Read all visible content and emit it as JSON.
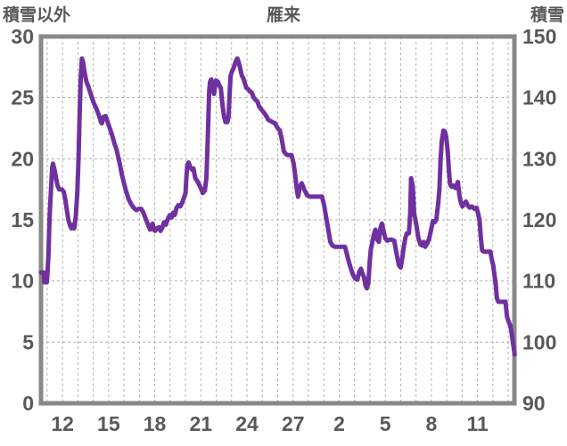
{
  "chart_data": {
    "type": "line",
    "title": "雁来",
    "grid": true,
    "legend_position": "none",
    "left_axis": {
      "label": "積雪以外",
      "min": 0,
      "max": 30,
      "ticks": [
        30,
        25,
        20,
        15,
        10,
        5,
        0
      ]
    },
    "right_axis": {
      "label": "積雪",
      "min": 90,
      "max": 150,
      "ticks": [
        150,
        140,
        130,
        120,
        110,
        100,
        90
      ]
    },
    "x_axis": {
      "min_day": 10.6,
      "max_day": 41.4,
      "grid_day_start": 11,
      "grid_day_end": 41,
      "tick_days": [
        12,
        15,
        18,
        21,
        24,
        27,
        30,
        33,
        36,
        39
      ],
      "tick_labels": [
        "12",
        "15",
        "18",
        "21",
        "24",
        "27",
        "2",
        "5",
        "8",
        "11"
      ]
    },
    "series": [
      {
        "name": "積雪",
        "color": "#7030A0",
        "points": [
          [
            10.6,
            10.7
          ],
          [
            10.78,
            10.7
          ],
          [
            10.82,
            9.9
          ],
          [
            10.98,
            9.9
          ],
          [
            11.02,
            10.6
          ],
          [
            11.08,
            12.0
          ],
          [
            11.15,
            15.0
          ],
          [
            11.25,
            17.5
          ],
          [
            11.33,
            19.3
          ],
          [
            11.38,
            19.6
          ],
          [
            11.48,
            19.1
          ],
          [
            11.58,
            18.4
          ],
          [
            11.68,
            17.8
          ],
          [
            11.78,
            17.5
          ],
          [
            11.95,
            17.5
          ],
          [
            12.08,
            17.3
          ],
          [
            12.18,
            16.7
          ],
          [
            12.28,
            15.8
          ],
          [
            12.38,
            15.0
          ],
          [
            12.5,
            14.5
          ],
          [
            12.58,
            14.3
          ],
          [
            12.68,
            14.6
          ],
          [
            12.76,
            14.3
          ],
          [
            12.86,
            15.3
          ],
          [
            12.96,
            17.2
          ],
          [
            13.04,
            20.0
          ],
          [
            13.1,
            23.0
          ],
          [
            13.18,
            26.5
          ],
          [
            13.26,
            28.2
          ],
          [
            13.34,
            27.9
          ],
          [
            13.44,
            27.0
          ],
          [
            13.56,
            26.3
          ],
          [
            13.68,
            25.9
          ],
          [
            13.86,
            25.2
          ],
          [
            14.02,
            24.6
          ],
          [
            14.2,
            24.1
          ],
          [
            14.38,
            23.5
          ],
          [
            14.5,
            23.0
          ],
          [
            14.56,
            22.9
          ],
          [
            14.66,
            23.4
          ],
          [
            14.8,
            23.5
          ],
          [
            14.96,
            22.9
          ],
          [
            15.1,
            22.4
          ],
          [
            15.26,
            21.8
          ],
          [
            15.36,
            21.3
          ],
          [
            15.5,
            20.8
          ],
          [
            15.62,
            20.2
          ],
          [
            15.72,
            19.6
          ],
          [
            15.86,
            18.7
          ],
          [
            16.0,
            18.0
          ],
          [
            16.12,
            17.4
          ],
          [
            16.3,
            16.7
          ],
          [
            16.46,
            16.3
          ],
          [
            16.62,
            16.0
          ],
          [
            16.8,
            15.8
          ],
          [
            16.96,
            15.9
          ],
          [
            17.12,
            15.9
          ],
          [
            17.26,
            15.6
          ],
          [
            17.44,
            15.0
          ],
          [
            17.56,
            14.6
          ],
          [
            17.7,
            14.2
          ],
          [
            17.78,
            14.5
          ],
          [
            17.86,
            14.7
          ],
          [
            17.94,
            14.2
          ],
          [
            18.02,
            14.1
          ],
          [
            18.14,
            14.3
          ],
          [
            18.26,
            14.4
          ],
          [
            18.38,
            14.1
          ],
          [
            18.5,
            14.4
          ],
          [
            18.6,
            14.8
          ],
          [
            18.72,
            14.6
          ],
          [
            18.86,
            15.1
          ],
          [
            18.98,
            15.4
          ],
          [
            19.1,
            15.2
          ],
          [
            19.2,
            15.6
          ],
          [
            19.3,
            15.4
          ],
          [
            19.42,
            16.0
          ],
          [
            19.54,
            16.2
          ],
          [
            19.66,
            16.1
          ],
          [
            19.78,
            16.4
          ],
          [
            19.9,
            16.8
          ],
          [
            20.0,
            17.2
          ],
          [
            20.06,
            18.5
          ],
          [
            20.12,
            19.5
          ],
          [
            20.2,
            19.7
          ],
          [
            20.32,
            19.3
          ],
          [
            20.44,
            19.1
          ],
          [
            20.52,
            19.2
          ],
          [
            20.64,
            18.4
          ],
          [
            20.76,
            18.2
          ],
          [
            20.88,
            17.9
          ],
          [
            21.0,
            17.6
          ],
          [
            21.12,
            17.2
          ],
          [
            21.26,
            17.4
          ],
          [
            21.36,
            18.4
          ],
          [
            21.42,
            20.5
          ],
          [
            21.48,
            23.0
          ],
          [
            21.54,
            25.5
          ],
          [
            21.6,
            26.3
          ],
          [
            21.68,
            26.5
          ],
          [
            21.76,
            25.7
          ],
          [
            21.86,
            25.3
          ],
          [
            21.98,
            26.4
          ],
          [
            22.1,
            26.3
          ],
          [
            22.2,
            26.0
          ],
          [
            22.3,
            25.8
          ],
          [
            22.4,
            24.5
          ],
          [
            22.5,
            23.5
          ],
          [
            22.6,
            23.0
          ],
          [
            22.72,
            23.0
          ],
          [
            22.8,
            23.4
          ],
          [
            22.88,
            25.5
          ],
          [
            22.94,
            26.8
          ],
          [
            23.04,
            27.2
          ],
          [
            23.16,
            27.5
          ],
          [
            23.28,
            28.0
          ],
          [
            23.38,
            28.2
          ],
          [
            23.46,
            27.9
          ],
          [
            23.56,
            27.4
          ],
          [
            23.66,
            26.8
          ],
          [
            23.76,
            26.6
          ],
          [
            23.86,
            26.2
          ],
          [
            23.96,
            25.8
          ],
          [
            24.08,
            25.7
          ],
          [
            24.2,
            25.5
          ],
          [
            24.32,
            25.4
          ],
          [
            24.44,
            25.0
          ],
          [
            24.56,
            24.8
          ],
          [
            24.68,
            24.7
          ],
          [
            24.78,
            24.3
          ],
          [
            24.9,
            24.1
          ],
          [
            25.02,
            23.9
          ],
          [
            25.14,
            23.7
          ],
          [
            25.26,
            23.5
          ],
          [
            25.38,
            23.2
          ],
          [
            25.52,
            23.1
          ],
          [
            25.66,
            23.0
          ],
          [
            25.82,
            22.9
          ],
          [
            26.0,
            22.5
          ],
          [
            26.14,
            22.3
          ],
          [
            26.28,
            21.5
          ],
          [
            26.4,
            20.6
          ],
          [
            26.52,
            20.4
          ],
          [
            26.64,
            20.3
          ],
          [
            26.9,
            20.3
          ],
          [
            27.04,
            19.6
          ],
          [
            27.14,
            18.6
          ],
          [
            27.24,
            17.5
          ],
          [
            27.32,
            16.9
          ],
          [
            27.44,
            17.7
          ],
          [
            27.56,
            18.0
          ],
          [
            27.72,
            17.5
          ],
          [
            27.92,
            17.0
          ],
          [
            28.1,
            16.9
          ],
          [
            28.88,
            16.9
          ],
          [
            29.02,
            16.2
          ],
          [
            29.14,
            15.3
          ],
          [
            29.28,
            14.3
          ],
          [
            29.42,
            13.2
          ],
          [
            29.56,
            12.9
          ],
          [
            29.72,
            12.8
          ],
          [
            30.38,
            12.8
          ],
          [
            30.5,
            12.2
          ],
          [
            30.62,
            11.6
          ],
          [
            30.76,
            11.0
          ],
          [
            30.9,
            10.5
          ],
          [
            31.04,
            10.2
          ],
          [
            31.18,
            10.1
          ],
          [
            31.32,
            10.8
          ],
          [
            31.42,
            11.0
          ],
          [
            31.52,
            10.6
          ],
          [
            31.62,
            10.3
          ],
          [
            31.72,
            9.6
          ],
          [
            31.8,
            9.4
          ],
          [
            31.9,
            9.8
          ],
          [
            31.98,
            11.5
          ],
          [
            32.06,
            12.6
          ],
          [
            32.16,
            13.2
          ],
          [
            32.26,
            13.8
          ],
          [
            32.36,
            14.2
          ],
          [
            32.48,
            13.4
          ],
          [
            32.58,
            13.2
          ],
          [
            32.68,
            14.3
          ],
          [
            32.78,
            14.7
          ],
          [
            32.9,
            14.0
          ],
          [
            33.0,
            13.5
          ],
          [
            33.12,
            13.3
          ],
          [
            33.34,
            13.4
          ],
          [
            33.58,
            13.3
          ],
          [
            33.74,
            12.2
          ],
          [
            33.88,
            11.3
          ],
          [
            34.0,
            11.1
          ],
          [
            34.1,
            11.8
          ],
          [
            34.18,
            12.6
          ],
          [
            34.3,
            13.5
          ],
          [
            34.4,
            13.9
          ],
          [
            34.54,
            13.9
          ],
          [
            34.62,
            15.5
          ],
          [
            34.68,
            18.4
          ],
          [
            34.78,
            17.8
          ],
          [
            34.88,
            15.5
          ],
          [
            35.02,
            14.6
          ],
          [
            35.14,
            13.6
          ],
          [
            35.28,
            13.0
          ],
          [
            35.4,
            12.9
          ],
          [
            35.5,
            13.2
          ],
          [
            35.6,
            12.8
          ],
          [
            35.74,
            13.1
          ],
          [
            35.86,
            13.5
          ],
          [
            36.0,
            14.3
          ],
          [
            36.1,
            14.9
          ],
          [
            36.2,
            14.8
          ],
          [
            36.32,
            15.0
          ],
          [
            36.44,
            16.3
          ],
          [
            36.52,
            17.5
          ],
          [
            36.6,
            19.9
          ],
          [
            36.68,
            21.5
          ],
          [
            36.78,
            22.3
          ],
          [
            36.88,
            22.2
          ],
          [
            36.96,
            21.8
          ],
          [
            37.06,
            20.6
          ],
          [
            37.14,
            19.0
          ],
          [
            37.22,
            17.9
          ],
          [
            37.32,
            17.7
          ],
          [
            37.44,
            17.8
          ],
          [
            37.56,
            17.6
          ],
          [
            37.66,
            17.9
          ],
          [
            37.72,
            18.1
          ],
          [
            37.82,
            17.0
          ],
          [
            37.92,
            16.4
          ],
          [
            38.02,
            16.1
          ],
          [
            38.12,
            16.3
          ],
          [
            38.24,
            16.5
          ],
          [
            38.36,
            16.2
          ],
          [
            38.48,
            16.0
          ],
          [
            38.64,
            16.1
          ],
          [
            38.8,
            15.9
          ],
          [
            38.94,
            16.0
          ],
          [
            39.06,
            15.4
          ],
          [
            39.14,
            14.9
          ],
          [
            39.22,
            13.5
          ],
          [
            39.3,
            12.5
          ],
          [
            39.42,
            12.4
          ],
          [
            39.84,
            12.4
          ],
          [
            39.92,
            11.8
          ],
          [
            40.02,
            11.3
          ],
          [
            40.1,
            10.5
          ],
          [
            40.18,
            9.8
          ],
          [
            40.26,
            8.6
          ],
          [
            40.36,
            8.3
          ],
          [
            40.82,
            8.3
          ],
          [
            40.92,
            7.1
          ],
          [
            41.02,
            6.7
          ],
          [
            41.12,
            6.4
          ],
          [
            41.2,
            5.9
          ],
          [
            41.28,
            5.2
          ],
          [
            41.36,
            4.5
          ],
          [
            41.42,
            4.0
          ]
        ]
      }
    ],
    "colors": {
      "line": "#7030A0",
      "frame": "#898989",
      "gridline": "#b3b3b3",
      "text": "#595959",
      "background": "#ffffff"
    }
  }
}
